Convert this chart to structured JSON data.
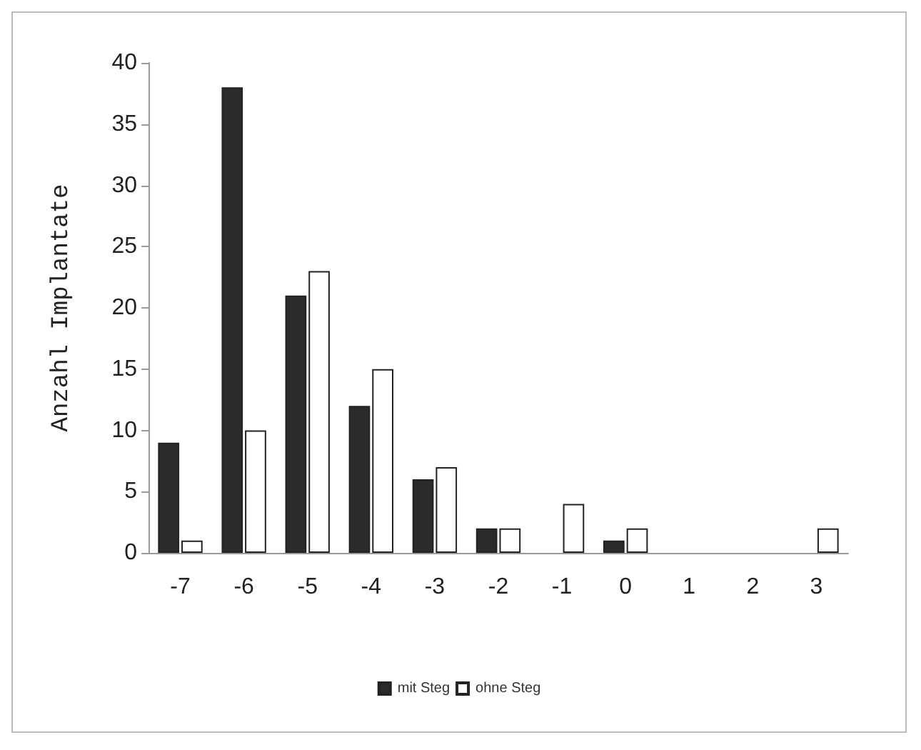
{
  "chart_data": {
    "type": "bar",
    "ylabel": "Anzahl Implantate",
    "categories": [
      "-7",
      "-6",
      "-5",
      "-4",
      "-3",
      "-2",
      "-1",
      "0",
      "1",
      "2",
      "3"
    ],
    "series": [
      {
        "name": "mit Steg",
        "color": "#2b2b2b",
        "values": [
          9,
          38,
          21,
          12,
          6,
          2,
          0,
          1,
          0,
          0,
          0
        ]
      },
      {
        "name": "ohne Steg",
        "color": "#ffffff",
        "values": [
          1,
          10,
          23,
          15,
          7,
          2,
          4,
          2,
          0,
          0,
          2
        ]
      }
    ],
    "ylim": [
      0,
      40
    ],
    "yticks": [
      0,
      5,
      10,
      15,
      20,
      25,
      30,
      35,
      40
    ],
    "grid": false,
    "legend": "bottom"
  }
}
